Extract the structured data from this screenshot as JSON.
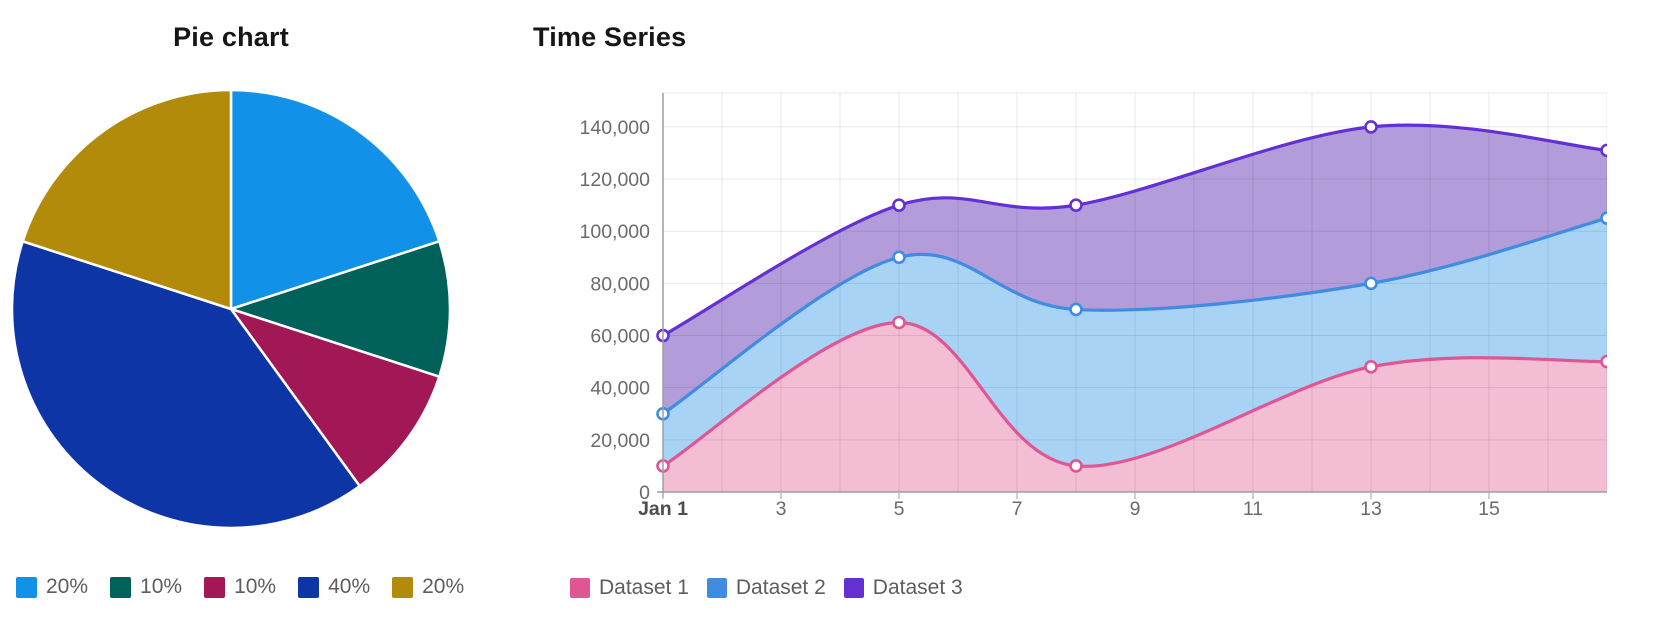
{
  "pie_section": {
    "title": "Pie chart"
  },
  "timeseries_section": {
    "title": "Time Series"
  },
  "chart_data": [
    {
      "type": "pie",
      "title": "Pie chart",
      "labels": [
        "20%",
        "10%",
        "10%",
        "40%",
        "20%"
      ],
      "values": [
        20,
        10,
        10,
        40,
        20
      ],
      "colors": [
        "#1192e8",
        "#00605a",
        "#a21857",
        "#0e35a6",
        "#b28b0a"
      ],
      "start_angle": "top",
      "direction": "clockwise",
      "slice_border_color": "#ffffff",
      "legend_position": "bottom"
    },
    {
      "type": "area",
      "title": "Time Series",
      "x_unit": "day of January",
      "x": [
        1,
        5,
        8,
        13,
        17
      ],
      "x_range": [
        1,
        17
      ],
      "x_tick_days": [
        1,
        3,
        5,
        7,
        9,
        11,
        13,
        15
      ],
      "x_tick_labels": [
        "Jan 1",
        "3",
        "5",
        "7",
        "9",
        "11",
        "13",
        "15"
      ],
      "y_ticks": [
        0,
        20000,
        40000,
        60000,
        80000,
        100000,
        120000,
        140000
      ],
      "y_tick_labels": [
        "0",
        "20,000",
        "40,000",
        "60,000",
        "80,000",
        "100,000",
        "120,000",
        "140,000"
      ],
      "ylim": [
        0,
        153000
      ],
      "grid": true,
      "curve": "smooth",
      "marker": "circle-white-center",
      "legend_position": "bottom",
      "series": [
        {
          "name": "Dataset 1",
          "color": "#df5694",
          "fill_color": "#f3bdd4",
          "values": [
            10000,
            65000,
            10000,
            48000,
            50000
          ]
        },
        {
          "name": "Dataset 2",
          "color": "#3f8ce0",
          "fill_color": "#a9d3f5",
          "values": [
            30000,
            90000,
            70000,
            80000,
            105000
          ]
        },
        {
          "name": "Dataset 3",
          "color": "#6430d2",
          "fill_color": "#b29cda",
          "values": [
            60000,
            110000,
            110000,
            140000,
            131000
          ]
        }
      ]
    }
  ]
}
